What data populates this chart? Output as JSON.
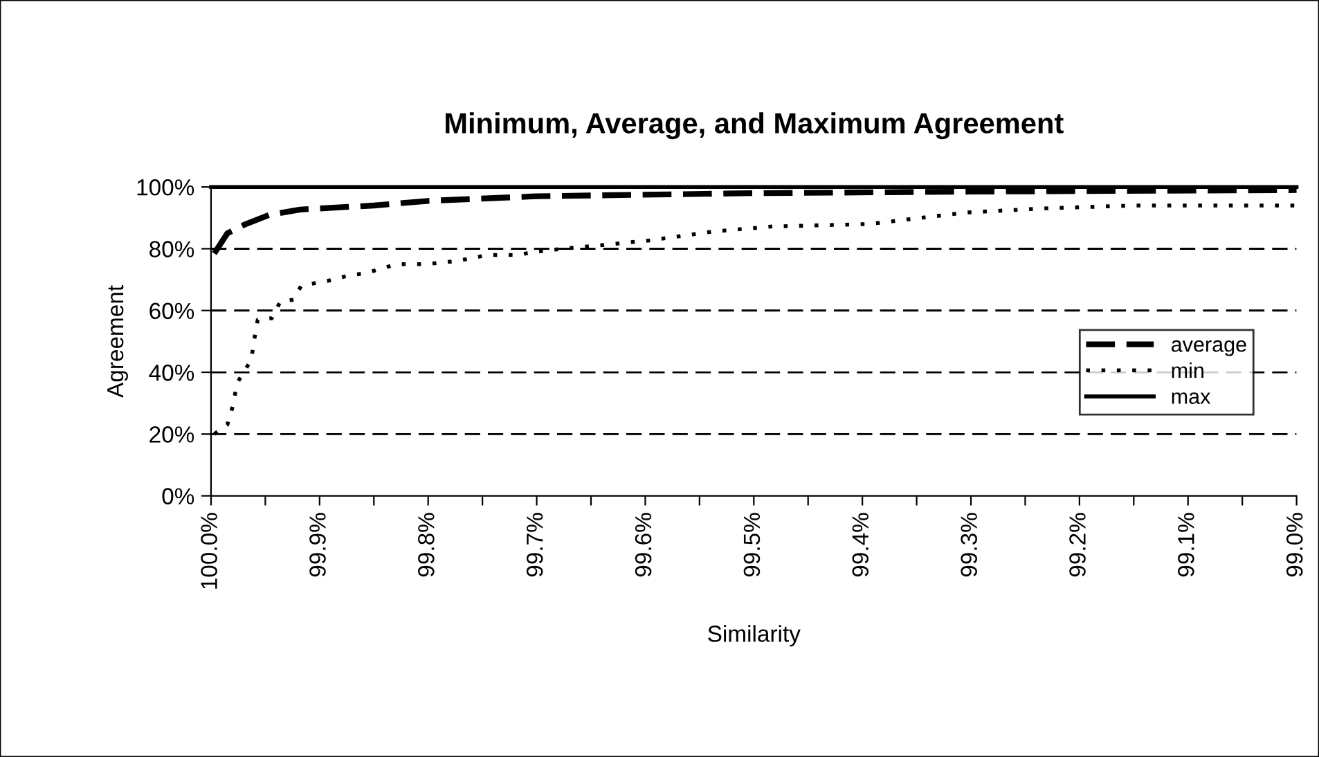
{
  "chart_data": {
    "type": "line",
    "title": "Minimum, Average, and Maximum Agreement",
    "xlabel": "Similarity",
    "ylabel": "Agreement",
    "xlim": [
      100.0,
      99.0
    ],
    "ylim": [
      0,
      100
    ],
    "xticks": [
      {
        "value": 100.0,
        "label": "100.0%"
      },
      {
        "value": 99.95,
        "label": null
      },
      {
        "value": 99.9,
        "label": "99.9%"
      },
      {
        "value": 99.85,
        "label": null
      },
      {
        "value": 99.8,
        "label": "99.8%"
      },
      {
        "value": 99.75,
        "label": null
      },
      {
        "value": 99.7,
        "label": "99.7%"
      },
      {
        "value": 99.65,
        "label": null
      },
      {
        "value": 99.6,
        "label": "99.6%"
      },
      {
        "value": 99.55,
        "label": null
      },
      {
        "value": 99.5,
        "label": "99.5%"
      },
      {
        "value": 99.45,
        "label": null
      },
      {
        "value": 99.4,
        "label": "99.4%"
      },
      {
        "value": 99.35,
        "label": null
      },
      {
        "value": 99.3,
        "label": "99.3%"
      },
      {
        "value": 99.25,
        "label": null
      },
      {
        "value": 99.2,
        "label": "99.2%"
      },
      {
        "value": 99.15,
        "label": null
      },
      {
        "value": 99.1,
        "label": "99.1%"
      },
      {
        "value": 99.05,
        "label": null
      },
      {
        "value": 99.0,
        "label": "99.0%"
      }
    ],
    "yticks": [
      {
        "value": 0,
        "label": "0%"
      },
      {
        "value": 20,
        "label": "20%"
      },
      {
        "value": 40,
        "label": "40%"
      },
      {
        "value": 60,
        "label": "60%"
      },
      {
        "value": 80,
        "label": "80%"
      },
      {
        "value": 100,
        "label": "100%"
      }
    ],
    "grid": "y",
    "legend": "right",
    "series": [
      {
        "name": "average",
        "color": "#000000",
        "line_style": "dashed",
        "x": [
          99.997,
          99.985,
          99.968,
          99.946,
          99.918,
          99.85,
          99.8,
          99.7,
          99.5,
          99.3,
          99.0
        ],
        "values": [
          78.5,
          85,
          88,
          91,
          92.7,
          94,
          95.5,
          97,
          98,
          98.5,
          99
        ]
      },
      {
        "name": "min",
        "color": "#000000",
        "line_style": "dotted",
        "x": [
          99.997,
          99.985,
          99.98,
          99.976,
          99.97,
          99.963,
          99.96,
          99.957,
          99.944,
          99.936,
          99.924,
          99.917,
          99.902,
          99.887,
          99.872,
          99.858,
          99.844,
          99.829,
          99.802,
          99.774,
          99.745,
          99.717,
          99.702,
          99.676,
          99.645,
          99.596,
          99.537,
          99.483,
          99.394,
          99.358,
          99.305,
          99.237,
          99.15,
          99.0
        ],
        "values": [
          20,
          23,
          29,
          36.5,
          40,
          44,
          51,
          57,
          57.5,
          63,
          63.5,
          68,
          69,
          70,
          71.5,
          72,
          73.5,
          75,
          75,
          76,
          78,
          78,
          79,
          80,
          81,
          82.7,
          85.6,
          87.2,
          88,
          89.5,
          91.7,
          93,
          94,
          94
        ]
      },
      {
        "name": "max",
        "color": "#000000",
        "line_style": "solid",
        "x": [
          100.0,
          99.0
        ],
        "values": [
          100,
          100
        ]
      }
    ]
  }
}
